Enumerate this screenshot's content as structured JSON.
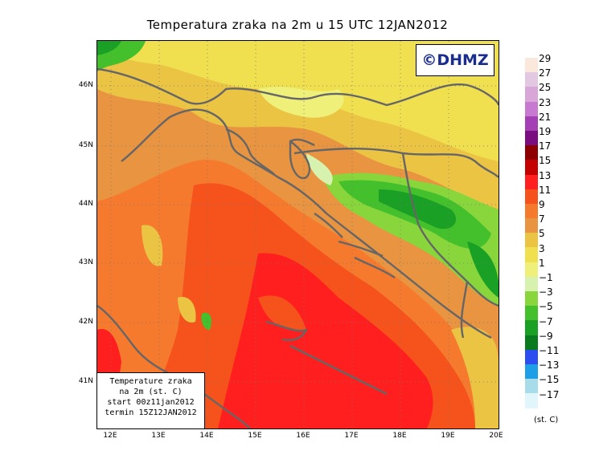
{
  "title": "Temperatura zraka na 2m u 15 UTC 12JAN2012",
  "copyright": "©DHMZ",
  "info": {
    "line1": "Temperature zraka",
    "line2": "na 2m (st. C)",
    "line3": "start 00z11jan2012",
    "line4": "termin 15Z12JAN2012"
  },
  "lat_labels": [
    "46N",
    "45N",
    "44N",
    "43N",
    "42N",
    "41N"
  ],
  "lon_labels": [
    "12E",
    "13E",
    "14E",
    "15E",
    "16E",
    "17E",
    "18E",
    "19E",
    "20E"
  ],
  "legend": {
    "labels": [
      "29",
      "27",
      "25",
      "23",
      "21",
      "19",
      "17",
      "15",
      "13",
      "11",
      "9",
      "7",
      "5",
      "3",
      "1",
      "−1",
      "−3",
      "−5",
      "−7",
      "−9",
      "−11",
      "−13",
      "−15",
      "−17"
    ],
    "colors": [
      "#fbe8dc",
      "#e2c8e0",
      "#d9a6d8",
      "#c77ad0",
      "#a43fb5",
      "#7a0d80",
      "#8c0000",
      "#c40000",
      "#ff1f1f",
      "#f6521c",
      "#f57a2e",
      "#e99440",
      "#ecc444",
      "#f0e050",
      "#eef07a",
      "#d7f2ae",
      "#88d63c",
      "#44c02c",
      "#1aa024",
      "#0a7a1e",
      "#2a4ef0",
      "#1e9ee6",
      "#a8dcea",
      "#e0f6fa"
    ],
    "unit": "(st. C)"
  }
}
